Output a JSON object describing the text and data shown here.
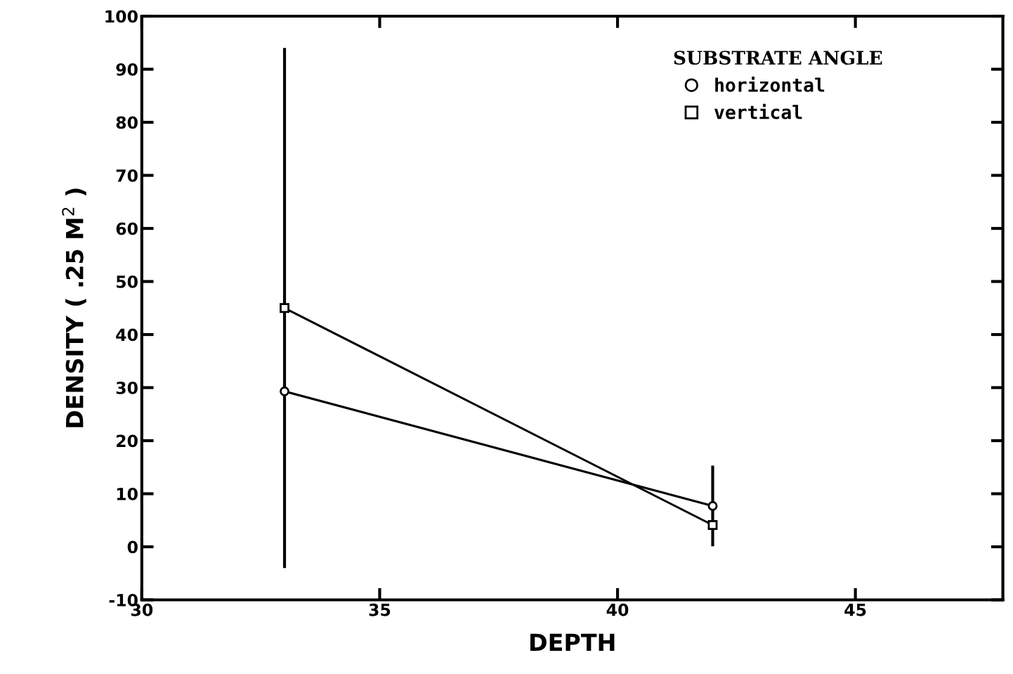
{
  "chart_data": {
    "type": "line",
    "xlabel": "DEPTH",
    "ylabel": "DENSITY ( .25 M$^{2}$ )",
    "legend_title": "SUBSTRATE ANGLE",
    "x": [
      33,
      42
    ],
    "series": [
      {
        "name": "horizontal",
        "color": "#000000",
        "marker": "circle",
        "values": [
          29.3,
          7.7
        ],
        "errors": [
          null,
          7.6
        ]
      },
      {
        "name": "vertical",
        "color": "#000000",
        "marker": "square",
        "values": [
          45,
          4.1
        ],
        "errors": [
          49,
          null
        ]
      }
    ],
    "xlim": [
      30,
      48.1
    ],
    "ylim": [
      -10,
      100
    ],
    "xticks": [
      30,
      35,
      40,
      45
    ],
    "yticks": [
      -10,
      0,
      10,
      20,
      30,
      40,
      50,
      60,
      70,
      80,
      90,
      100
    ],
    "grid": false,
    "legend": "top right",
    "line_style": "solid"
  }
}
